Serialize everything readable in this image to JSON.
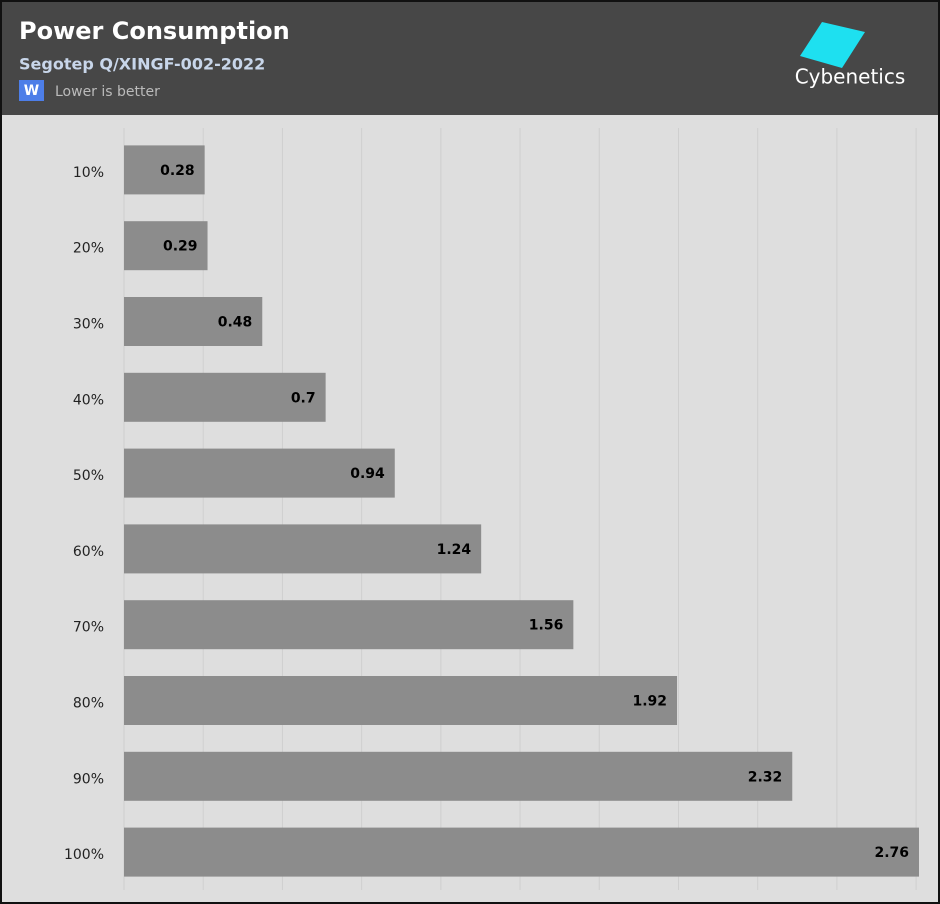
{
  "chart_data": {
    "type": "bar",
    "orientation": "horizontal",
    "title": "Power Consumption",
    "subtitle": "Segotep Q/XINGF-002-2022",
    "unit": "W",
    "note": "Lower is better",
    "brand": "Cybenetics",
    "categories": [
      "10%",
      "20%",
      "30%",
      "40%",
      "50%",
      "60%",
      "70%",
      "80%",
      "90%",
      "100%"
    ],
    "values": [
      0.28,
      0.29,
      0.48,
      0.7,
      0.94,
      1.24,
      1.56,
      1.92,
      2.32,
      2.76
    ],
    "color": "#8c8c8c",
    "xlim": [
      0,
      2.76
    ],
    "xticks": [
      0,
      0.275,
      0.55,
      0.825,
      1.1,
      1.375,
      1.65,
      1.925,
      2.2,
      2.475,
      2.75
    ],
    "tick_labels": false,
    "grid": true
  }
}
